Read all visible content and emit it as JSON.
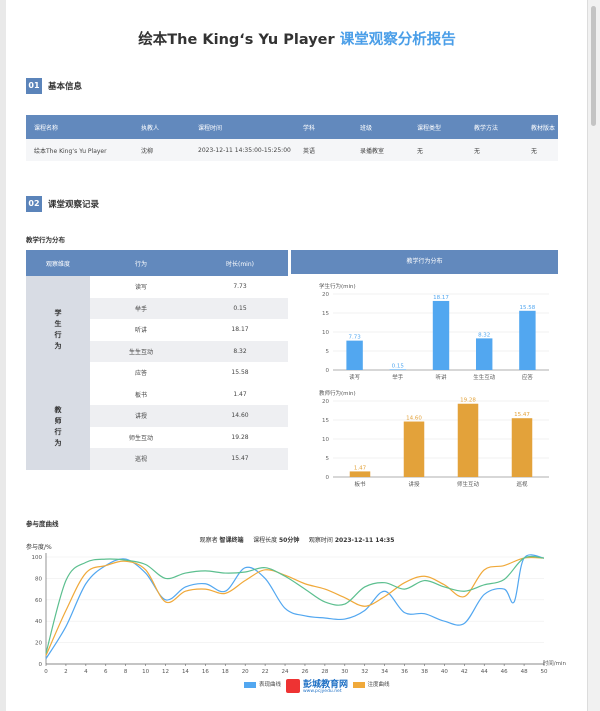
{
  "report": {
    "title_main": "绘本The King‘s Yu Player",
    "title_accent": "课堂观察分析报告"
  },
  "section1": {
    "num": "01",
    "title": "基本信息"
  },
  "basic_info": {
    "headers": [
      "课程名称",
      "执教人",
      "课程时间",
      "学科",
      "班级",
      "课程类型",
      "教学方法",
      "教材版本"
    ],
    "values": [
      "绘本The King‘s Yu Player",
      "沈柳",
      "2023-12-11 14:35:00-15:25:00",
      "英语",
      "录播教室",
      "无",
      "无",
      "无"
    ]
  },
  "section2": {
    "num": "02",
    "title": "课堂观察记录"
  },
  "behavior": {
    "subtitle": "教学行为分布",
    "headers": [
      "观察维度",
      "行为",
      "时长(min)"
    ],
    "chart_header": "教学行为分布",
    "student_group": "学生行为",
    "teacher_group": "教师行为",
    "student_rows": [
      {
        "name": "读写",
        "value": "7.73"
      },
      {
        "name": "举手",
        "value": "0.15"
      },
      {
        "name": "听讲",
        "value": "18.17"
      },
      {
        "name": "生生互动",
        "value": "8.32"
      },
      {
        "name": "应答",
        "value": "15.58"
      }
    ],
    "teacher_rows": [
      {
        "name": "板书",
        "value": "1.47"
      },
      {
        "name": "讲授",
        "value": "14.60"
      },
      {
        "name": "师生互动",
        "value": "19.28"
      },
      {
        "name": "巡视",
        "value": "15.47"
      }
    ]
  },
  "engagement": {
    "subtitle": "参与度曲线",
    "observer_label": "观察者",
    "observer": "智课终端",
    "length_label": "课程长度",
    "length": "50分钟",
    "time_label": "观察时间",
    "time": "2023-12-11 14:35",
    "legend": [
      "表现曲线",
      "注度曲线"
    ]
  },
  "watermark": {
    "brand": "彭城教育网",
    "url": "www.pcjyedu.net"
  },
  "colors": {
    "header_blue": "#6289bd",
    "accent": "#4a9ee8",
    "student_bar": "#52a7f0",
    "teacher_bar": "#e3a23a",
    "curve_blue": "#52a7f0",
    "curve_orange": "#f0a93a",
    "curve_green": "#5cbf8f"
  },
  "chart_data": [
    {
      "type": "bar",
      "ylabel": "学生行为(min)",
      "ylim": [
        0,
        20
      ],
      "yticks": [
        0,
        5,
        10,
        15,
        20
      ],
      "categories": [
        "读写",
        "举手",
        "听讲",
        "生生互动",
        "应答"
      ],
      "values": [
        7.73,
        0.15,
        18.17,
        8.32,
        15.58
      ],
      "labels": [
        "7.73",
        "0.15",
        "18.17",
        "8.32",
        "15.58"
      ]
    },
    {
      "type": "bar",
      "ylabel": "教师行为(min)",
      "ylim": [
        0,
        20
      ],
      "yticks": [
        0,
        5,
        10,
        15,
        20
      ],
      "categories": [
        "板书",
        "讲授",
        "师生互动",
        "巡视"
      ],
      "values": [
        1.47,
        14.6,
        19.28,
        15.47
      ],
      "labels": [
        "1.47",
        "14.60",
        "19.28",
        "15.47"
      ]
    },
    {
      "type": "line",
      "ylabel": "参与度/%",
      "xlabel": "时间/min",
      "xlim": [
        0,
        50
      ],
      "ylim": [
        0,
        100
      ],
      "xticks": [
        0,
        2,
        4,
        6,
        8,
        10,
        12,
        14,
        16,
        18,
        20,
        22,
        24,
        26,
        28,
        30,
        32,
        34,
        36,
        38,
        40,
        42,
        44,
        46,
        48,
        50
      ],
      "yticks": [
        0,
        20,
        40,
        60,
        80,
        100
      ],
      "series": [
        {
          "name": "表现曲线",
          "x": [
            0,
            2,
            4,
            6,
            8,
            10,
            12,
            14,
            16,
            18,
            20,
            22,
            24,
            26,
            28,
            30,
            32,
            34,
            36,
            38,
            40,
            42,
            44,
            46,
            47,
            48,
            50
          ],
          "y": [
            5,
            35,
            75,
            92,
            98,
            85,
            60,
            72,
            75,
            68,
            90,
            80,
            52,
            45,
            43,
            42,
            50,
            68,
            48,
            47,
            40,
            38,
            65,
            70,
            58,
            99,
            99
          ]
        },
        {
          "name": "注度曲线",
          "x": [
            0,
            2,
            4,
            6,
            8,
            10,
            12,
            14,
            16,
            18,
            20,
            22,
            24,
            26,
            28,
            30,
            32,
            34,
            36,
            38,
            40,
            42,
            44,
            46,
            48,
            50
          ],
          "y": [
            8,
            50,
            85,
            92,
            96,
            88,
            58,
            68,
            70,
            66,
            78,
            88,
            83,
            75,
            70,
            62,
            54,
            63,
            76,
            82,
            74,
            63,
            88,
            92,
            99,
            99
          ]
        },
        {
          "x": [
            0,
            2,
            4,
            6,
            8,
            10,
            12,
            14,
            16,
            18,
            20,
            22,
            24,
            26,
            28,
            30,
            32,
            34,
            36,
            38,
            40,
            42,
            44,
            46,
            48,
            50
          ],
          "y": [
            10,
            78,
            95,
            98,
            97,
            93,
            80,
            85,
            87,
            85,
            86,
            90,
            82,
            70,
            58,
            56,
            72,
            76,
            70,
            78,
            72,
            68,
            74,
            79,
            99,
            99
          ]
        }
      ]
    }
  ]
}
